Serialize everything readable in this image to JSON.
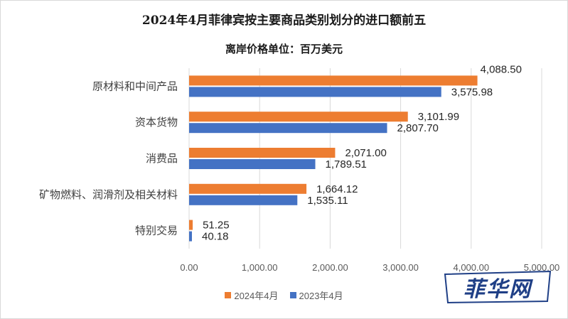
{
  "title": "2024年4月菲律宾按主要商品类别划分的进口额前五",
  "subtitle": "离岸价格单位：百万美元",
  "colors": {
    "series_2024": "#ed7d31",
    "series_2023": "#4472c4"
  },
  "watermark": {
    "text": "菲华网"
  },
  "chart_data": {
    "type": "bar",
    "orientation": "horizontal",
    "title": "2024年4月菲律宾按主要商品类别划分的进口额前五",
    "subtitle": "离岸价格单位：百万美元",
    "categories": [
      "原材料和中间产品",
      "资本货物",
      "消费品",
      "矿物燃料、润滑剂及相关材料",
      "特别交易"
    ],
    "series": [
      {
        "name": "2024年4月",
        "values": [
          4088.5,
          3101.99,
          2071.0,
          1664.12,
          51.25
        ],
        "labels": [
          "4,088.50",
          "3,101.99",
          "2,071.00",
          "1,664.12",
          "51.25"
        ]
      },
      {
        "name": "2023年4月",
        "values": [
          3575.98,
          2807.7,
          1789.51,
          1535.11,
          40.18
        ],
        "labels": [
          "3,575.98",
          "2,807.70",
          "1,789.51",
          "1,535.11",
          "40.18"
        ]
      }
    ],
    "xlim": [
      0,
      5000
    ],
    "xticks": [
      0,
      1000,
      2000,
      3000,
      4000,
      5000
    ],
    "xtick_labels": [
      "0.00",
      "1,000.00",
      "2,000.00",
      "3,000.00",
      "4,000.00",
      "5,000.00"
    ],
    "grid": true,
    "legend": "bottom"
  }
}
